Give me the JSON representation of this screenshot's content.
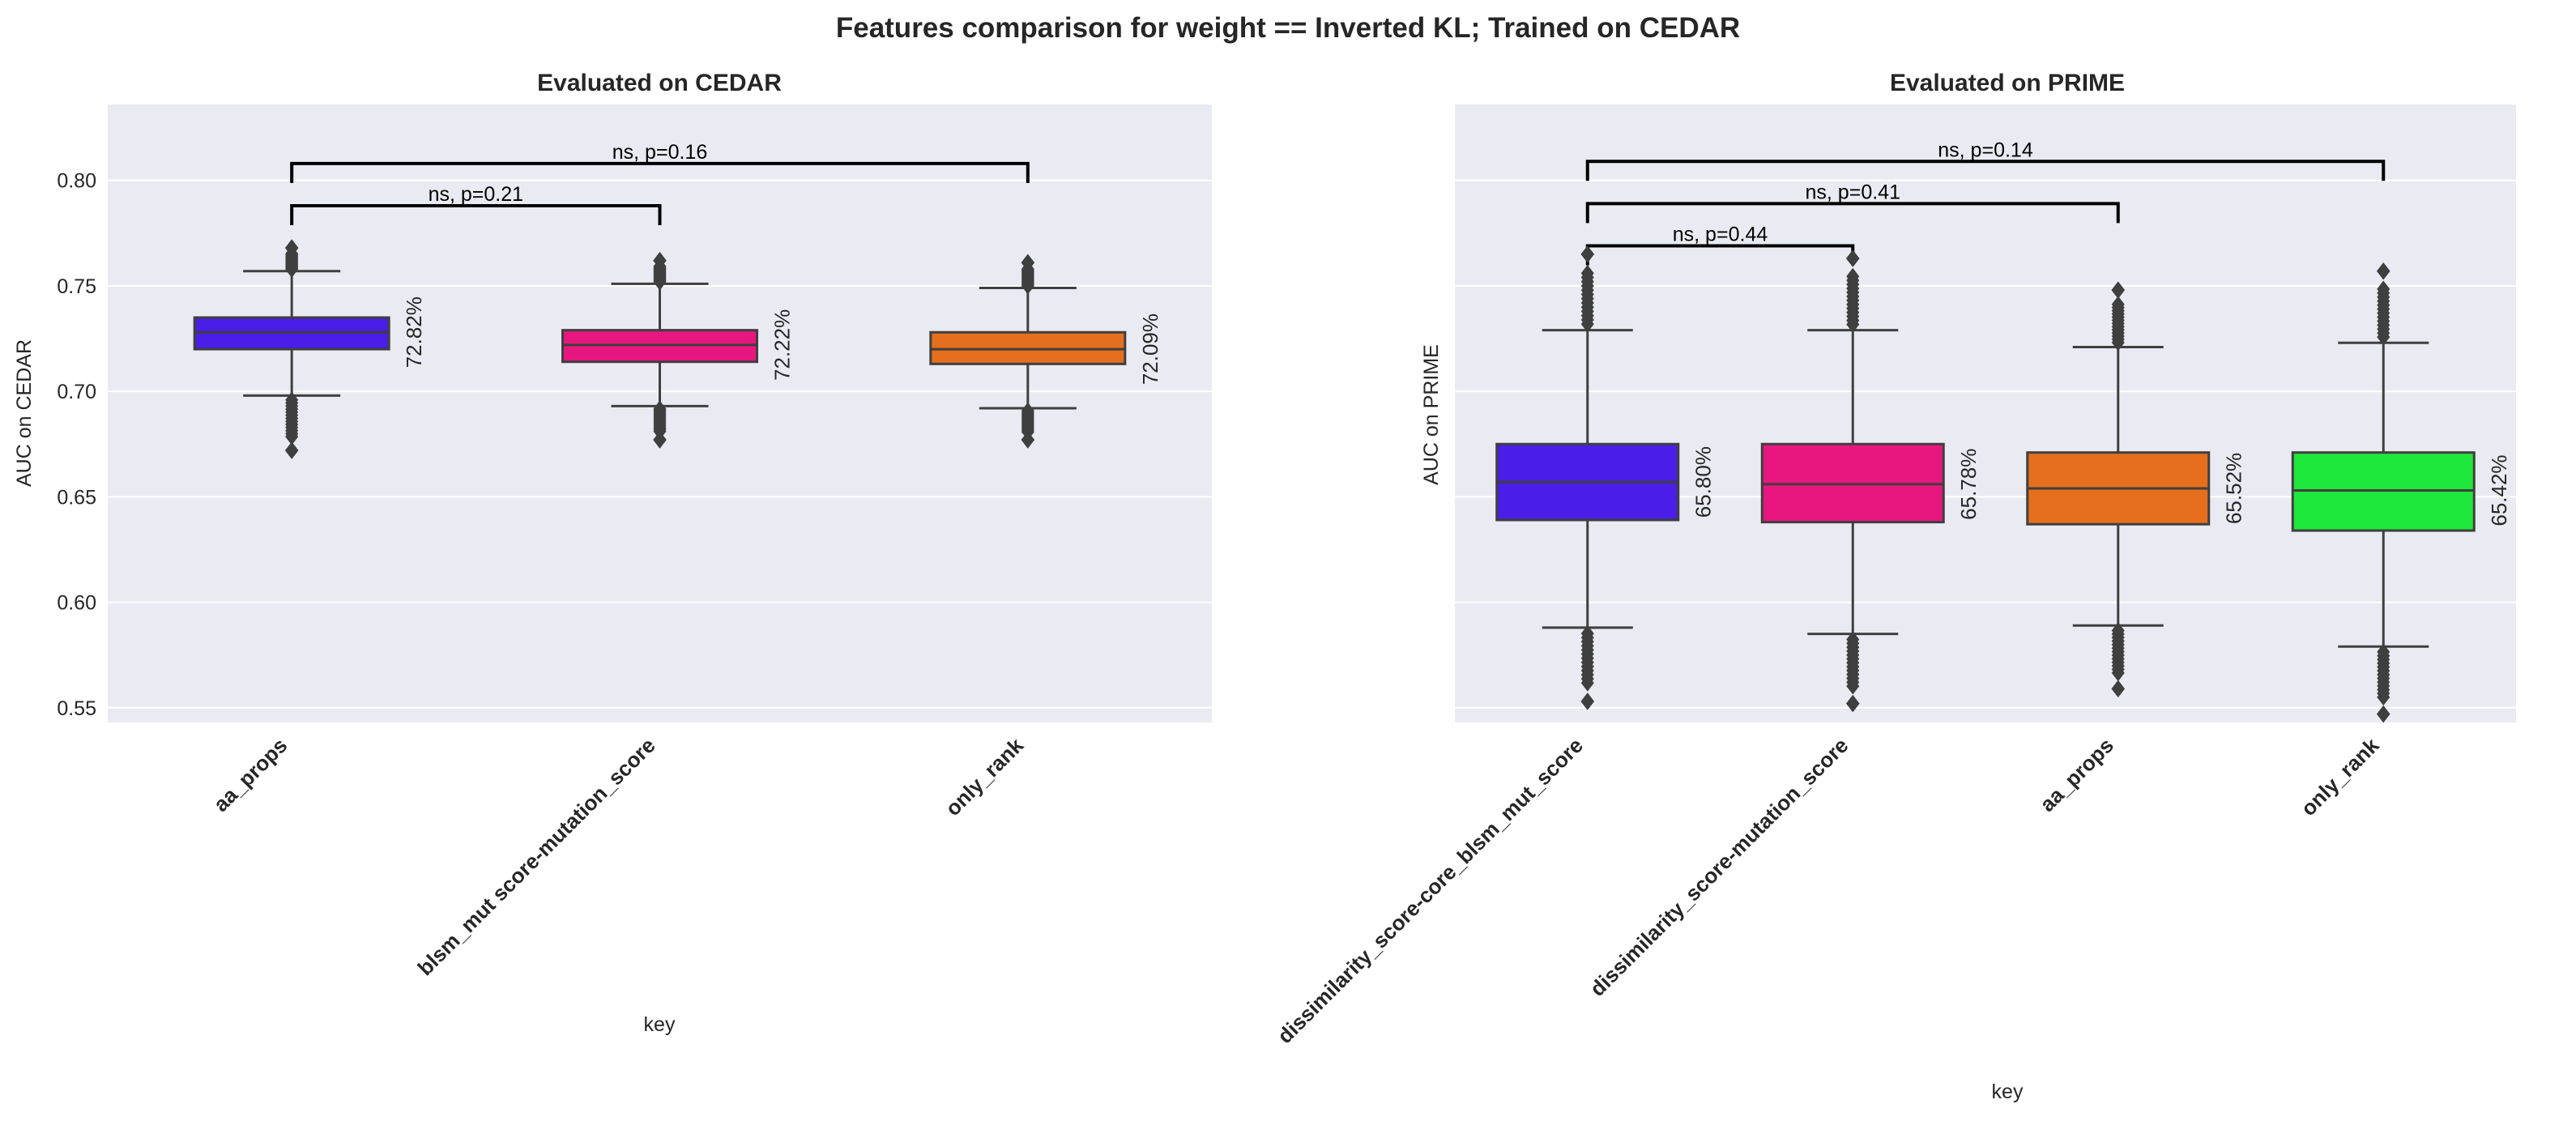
{
  "figure": {
    "suptitle": "Features comparison for weight == Inverted KL; Trained on CEDAR"
  },
  "colors": {
    "panel_bg": "#eaeaf2",
    "grid": "#ffffff",
    "box_edge": "#3f3f3f",
    "bracket": "#000000",
    "flier": "#3f3f3f"
  },
  "chart_data": [
    {
      "type": "box",
      "title": "Evaluated on CEDAR",
      "xlabel": "key",
      "ylabel": "AUC on CEDAR",
      "ylim": [
        0.543,
        0.836
      ],
      "yticks": [
        0.55,
        0.6,
        0.65,
        0.7,
        0.75,
        0.8
      ],
      "ytick_labels": [
        "0.55",
        "0.60",
        "0.65",
        "0.70",
        "0.75",
        "0.80"
      ],
      "show_ytick_labels": true,
      "categories": [
        "aa_props",
        "blsm_mut score-mutation_score",
        "only_rank"
      ],
      "boxes": [
        {
          "name": "aa_props",
          "color": "#4a1ee6",
          "q1": 0.72,
          "median": 0.728,
          "q3": 0.735,
          "whisker_low": 0.698,
          "whisker_high": 0.757,
          "flier_min": 0.672,
          "flier_max": 0.768,
          "mean_label": "72.82%"
        },
        {
          "name": "blsm_mut score-mutation_score",
          "color": "#e8177f",
          "q1": 0.714,
          "median": 0.722,
          "q3": 0.729,
          "whisker_low": 0.693,
          "whisker_high": 0.751,
          "flier_min": 0.677,
          "flier_max": 0.762,
          "mean_label": "72.22%"
        },
        {
          "name": "only_rank",
          "color": "#e56f1c",
          "q1": 0.713,
          "median": 0.72,
          "q3": 0.728,
          "whisker_low": 0.692,
          "whisker_high": 0.749,
          "flier_min": 0.677,
          "flier_max": 0.761,
          "mean_label": "72.09%"
        }
      ],
      "annotations": [
        {
          "from": 0,
          "to": 1,
          "text": "ns, p=0.21",
          "y": 0.788
        },
        {
          "from": 0,
          "to": 2,
          "text": "ns, p=0.16",
          "y": 0.808
        }
      ]
    },
    {
      "type": "box",
      "title": "Evaluated on PRIME",
      "xlabel": "key",
      "ylabel": "AUC on PRIME",
      "ylim": [
        0.543,
        0.836
      ],
      "yticks": [
        0.55,
        0.6,
        0.65,
        0.7,
        0.75,
        0.8
      ],
      "ytick_labels": [],
      "show_ytick_labels": false,
      "categories": [
        "dissimilarity_score-core_blsm_mut_score",
        "dissimilarity_score-mutation_score",
        "aa_props",
        "only_rank"
      ],
      "boxes": [
        {
          "name": "dissimilarity_score-core_blsm_mut_score",
          "color": "#4a1ee6",
          "q1": 0.639,
          "median": 0.657,
          "q3": 0.675,
          "whisker_low": 0.588,
          "whisker_high": 0.729,
          "flier_min": 0.553,
          "flier_max": 0.765,
          "mean_label": "65.80%"
        },
        {
          "name": "dissimilarity_score-mutation_score",
          "color": "#e8177f",
          "q1": 0.638,
          "median": 0.656,
          "q3": 0.675,
          "whisker_low": 0.585,
          "whisker_high": 0.729,
          "flier_min": 0.552,
          "flier_max": 0.763,
          "mean_label": "65.78%"
        },
        {
          "name": "aa_props",
          "color": "#e56f1c",
          "q1": 0.637,
          "median": 0.654,
          "q3": 0.671,
          "whisker_low": 0.589,
          "whisker_high": 0.721,
          "flier_min": 0.559,
          "flier_max": 0.748,
          "mean_label": "65.52%"
        },
        {
          "name": "only_rank",
          "color": "#1de83b",
          "q1": 0.634,
          "median": 0.653,
          "q3": 0.671,
          "whisker_low": 0.579,
          "whisker_high": 0.723,
          "flier_min": 0.547,
          "flier_max": 0.757,
          "mean_label": "65.42%"
        }
      ],
      "annotations": [
        {
          "from": 0,
          "to": 1,
          "text": "ns, p=0.44",
          "y": 0.769
        },
        {
          "from": 0,
          "to": 2,
          "text": "ns, p=0.41",
          "y": 0.789
        },
        {
          "from": 0,
          "to": 3,
          "text": "ns, p=0.14",
          "y": 0.809
        }
      ]
    }
  ]
}
